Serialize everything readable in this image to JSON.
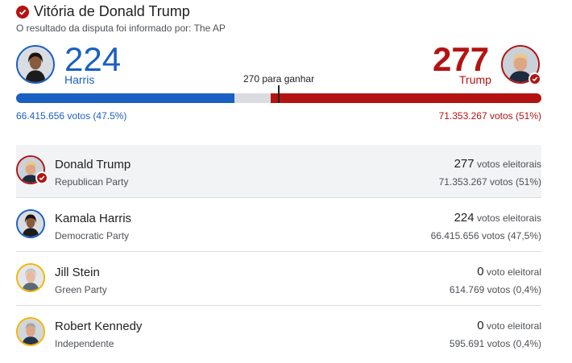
{
  "header": {
    "title": "Vitória de Donald Trump",
    "subtitle": "O resultado da disputa foi informado por: The AP"
  },
  "summary": {
    "harris": {
      "electoral": "224",
      "label": "Harris",
      "votes": "66.415.656 votos (47.5%)",
      "color": "#1a5fc2",
      "bar_fraction": 0.416
    },
    "trump": {
      "electoral": "277",
      "label": "Trump",
      "votes": "71.353.267 votos (51%)",
      "color": "#b31412",
      "bar_fraction": 0.515
    },
    "to_win": "270 para ganhar"
  },
  "candidates": [
    {
      "name": "Donald Trump",
      "party": "Republican Party",
      "electoral": "277",
      "electoral_label": "votos eleitorais",
      "popular": "71.353.267 votos (51%)",
      "winner": true
    },
    {
      "name": "Kamala Harris",
      "party": "Democratic Party",
      "electoral": "224",
      "electoral_label": "votos eleitorais",
      "popular": "66.415.656 votos (47,5%)",
      "winner": false
    },
    {
      "name": "Jill Stein",
      "party": "Green Party",
      "electoral": "0",
      "electoral_label": "voto eleitoral",
      "popular": "614.769 votos (0,4%)",
      "winner": false
    },
    {
      "name": "Robert Kennedy",
      "party": "Independente",
      "electoral": "0",
      "electoral_label": "voto eleitoral",
      "popular": "595.691 votos (0,4%)",
      "winner": false
    }
  ],
  "icons": {
    "winner": "check-icon",
    "portrait": "person-icon"
  }
}
